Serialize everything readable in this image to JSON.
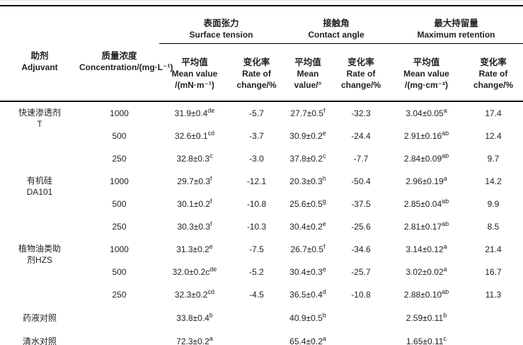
{
  "header": {
    "adjuvant": {
      "zh": "助剂",
      "en": "Adjuvant"
    },
    "concentration": {
      "zh": "质量浓度",
      "en": "Concentration/(mg·L⁻¹)"
    },
    "groups": [
      {
        "zh": "表面张力",
        "en": "Surface tension",
        "mean": {
          "l1": "平均值",
          "l2": "Mean value",
          "l3": "/(mN·m⁻¹)"
        },
        "rate": {
          "l1": "变化率",
          "l2": "Rate of",
          "l3": "change/%"
        }
      },
      {
        "zh": "接触角",
        "en": "Contact angle",
        "mean": {
          "l1": "平均值",
          "l2": "Mean",
          "l3": "value/°"
        },
        "rate": {
          "l1": "变化率",
          "l2": "Rate of",
          "l3": "change/%"
        }
      },
      {
        "zh": "最大持留量",
        "en": "Maximum retention",
        "mean": {
          "l1": "平均值",
          "l2": "Mean value",
          "l3": "/(mg·cm⁻²)"
        },
        "rate": {
          "l1": "变化率",
          "l2": "Rate of",
          "l3": "change/%"
        }
      }
    ]
  },
  "body": {
    "groups": [
      {
        "adjuvant": [
          "快速渗透剂",
          "T"
        ],
        "rows": [
          [
            "1000",
            "31.9±0.4^de",
            "-5.7",
            "27.7±0.5^f",
            "-32.3",
            "3.04±0.05^a",
            "17.4"
          ],
          [
            "500",
            "32.6±0.1^cd",
            "-3.7",
            "30.9±0.2^e",
            "-24.4",
            "2.91±0.16^ab",
            "12.4"
          ],
          [
            "250",
            "32.8±0.3^c",
            "-3.0",
            "37.8±0.2^c",
            "-7.7",
            "2.84±0.09^ab",
            "9.7"
          ]
        ]
      },
      {
        "adjuvant": [
          "有机硅",
          "DA101"
        ],
        "rows": [
          [
            "1000",
            "29.7±0.3^f",
            "-12.1",
            "20.3±0.3^h",
            "-50.4",
            "2.96±0.19^a",
            "14.2"
          ],
          [
            "500",
            "30.1±0.2^f",
            "-10.8",
            "25.6±0.5^g",
            "-37.5",
            "2.85±0.04^ab",
            "9.9"
          ],
          [
            "250",
            "30.3±0.3^f",
            "-10.3",
            "30.4±0.2^e",
            "-25.6",
            "2.81±0.17^ab",
            "8.5"
          ]
        ]
      },
      {
        "adjuvant": [
          "植物油类助",
          "剂HZS"
        ],
        "rows": [
          [
            "1000",
            "31.3±0.2^e",
            "-7.5",
            "26.7±0.5^f",
            "-34.6",
            "3.14±0.12^a",
            "21.4"
          ],
          [
            "500",
            "32.0±0.2c^de",
            "-5.2",
            "30.4±0.3^e",
            "-25.7",
            "3.02±0.02^a",
            "16.7"
          ],
          [
            "250",
            "32.3±0.2^cd",
            "-4.5",
            "36.5±0.4^d",
            "-10.8",
            "2.88±0.10^ab",
            "11.3"
          ]
        ]
      }
    ],
    "controls": [
      {
        "label": "药液对照",
        "cells": [
          "",
          "33.8±0.4^b",
          "",
          "40.9±0.5^b",
          "",
          "2.59±0.11^b",
          ""
        ]
      },
      {
        "label": "清水对照",
        "cells": [
          "",
          "72.3±0.2^a",
          "",
          "65.4±0.2^a",
          "",
          "1.65±0.11^c",
          ""
        ]
      }
    ]
  }
}
